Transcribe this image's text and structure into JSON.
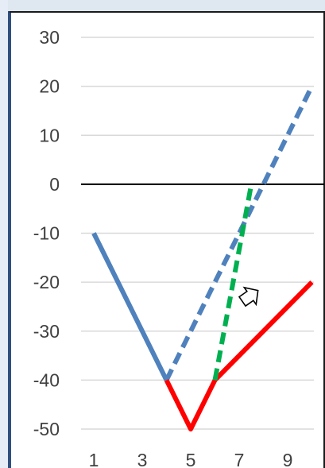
{
  "chart_data": {
    "type": "line",
    "title": "",
    "xlabel": "",
    "ylabel": "",
    "x_ticks": [
      "1",
      "3",
      "5",
      "7",
      "9"
    ],
    "y_ticks": [
      "30",
      "20",
      "10",
      "0",
      "-10",
      "-20",
      "-30",
      "-40",
      "-50"
    ],
    "xlim": [
      0.5,
      10.2
    ],
    "ylim": [
      -50,
      30
    ],
    "grid": true,
    "zero_line": true,
    "legend": "none",
    "series": [
      {
        "points": [
          [
            1,
            -10
          ],
          [
            4,
            -40
          ]
        ],
        "color": "#4f81bd",
        "style": "solid"
      },
      {
        "points": [
          [
            4,
            -40
          ],
          [
            10,
            20
          ]
        ],
        "color": "#4f81bd",
        "style": "dashed"
      },
      {
        "points": [
          [
            4,
            -40
          ],
          [
            5,
            -50
          ],
          [
            6,
            -40
          ],
          [
            10,
            -20
          ]
        ],
        "color": "#ff0000",
        "style": "solid"
      },
      {
        "points": [
          [
            6,
            -40
          ],
          [
            7.5,
            0
          ]
        ],
        "color": "#00b050",
        "style": "dashed"
      }
    ],
    "annotations": [
      {
        "icon": "hollow-arrow-cursor-icon",
        "x": 7.4,
        "y": -23
      }
    ]
  },
  "colors": {
    "background": "#dfe7f1",
    "plot_area": "#ffffff",
    "frame": "#2f4f7f",
    "gridline": "#d9d9d9",
    "zero_line": "#000000",
    "tick_text": "#404040"
  }
}
